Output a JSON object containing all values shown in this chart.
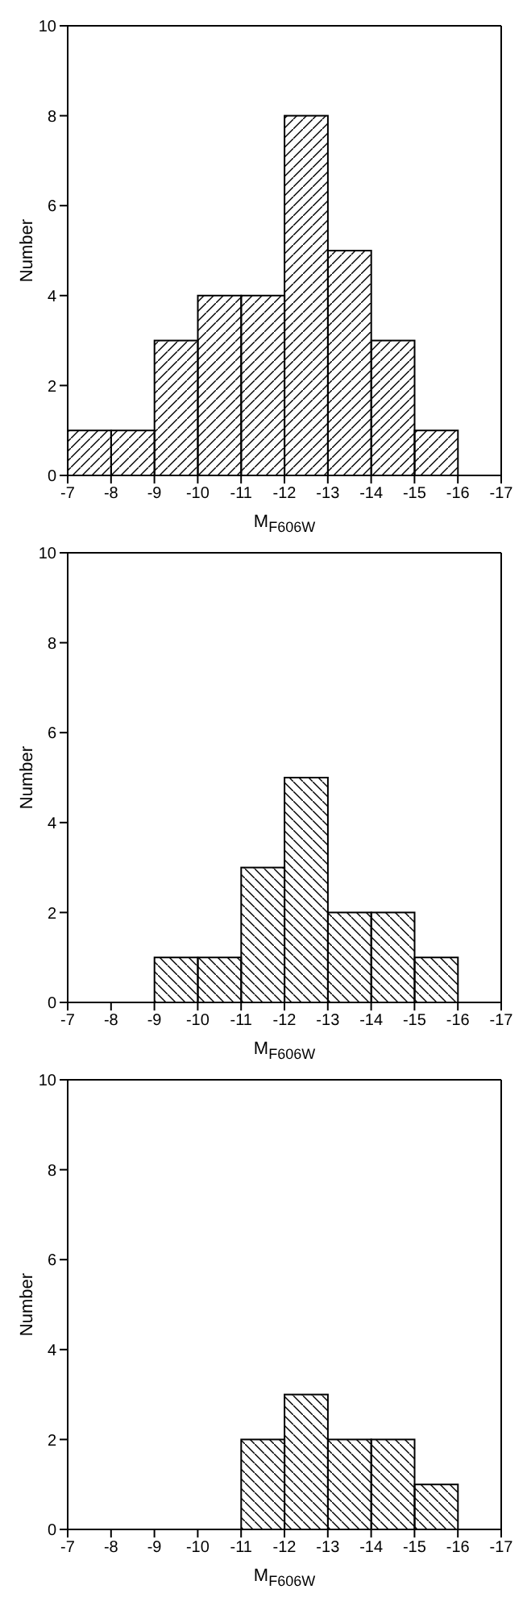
{
  "chart_data": [
    {
      "type": "histogram",
      "bins": [
        -7,
        -8,
        -9,
        -10,
        -11,
        -12,
        -13,
        -14,
        -15,
        -16
      ],
      "values": [
        1,
        1,
        3,
        4,
        4,
        8,
        5,
        3,
        1
      ],
      "color": "#000000",
      "xlabel": "M$_{F606W}$",
      "ylabel": "Number",
      "xlim": [
        -7,
        -17
      ],
      "xticks": [
        -7,
        -8,
        -9,
        -10,
        -11,
        -12,
        -13,
        -14,
        -15,
        -16,
        -17
      ],
      "ylim": [
        0,
        10
      ],
      "yticks": [
        0,
        2,
        4,
        6,
        8,
        10
      ],
      "grid": false,
      "legend": false
    },
    {
      "type": "histogram",
      "bins": [
        -9,
        -10,
        -11,
        -12,
        -13,
        -14,
        -15,
        -16
      ],
      "values": [
        1,
        1,
        3,
        5,
        2,
        2,
        1
      ],
      "color": "#000000",
      "xlabel": "M$_{F606W}$",
      "ylabel": "Number",
      "xlim": [
        -7,
        -17
      ],
      "xticks": [
        -7,
        -8,
        -9,
        -10,
        -11,
        -12,
        -13,
        -14,
        -15,
        -16,
        -17
      ],
      "ylim": [
        0,
        10
      ],
      "yticks": [
        0,
        2,
        4,
        6,
        8,
        10
      ],
      "grid": false,
      "legend": false
    },
    {
      "type": "histogram",
      "bins": [
        -11,
        -12,
        -13,
        -14,
        -15,
        -16
      ],
      "values": [
        2,
        3,
        2,
        2,
        1
      ],
      "color": "#000000",
      "xlabel": "M$_{F606W}$",
      "ylabel": "Number",
      "xlim": [
        -7,
        -17
      ],
      "xticks": [
        -7,
        -8,
        -9,
        -10,
        -11,
        -12,
        -13,
        -14,
        -15,
        -16,
        -17
      ],
      "ylim": [
        0,
        10
      ],
      "yticks": [
        0,
        2,
        4,
        6,
        8,
        10
      ],
      "grid": false,
      "legend": false
    }
  ]
}
